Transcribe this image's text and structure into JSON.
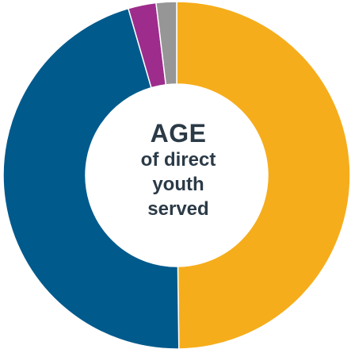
{
  "center_label": {
    "title": "AGE",
    "line1": "of direct",
    "line2": "youth",
    "line3": "served"
  },
  "chart_data": {
    "type": "pie",
    "variant": "donut",
    "title": "AGE of direct youth served",
    "series": [
      {
        "value": 49.8,
        "color": "#f6ad1b"
      },
      {
        "value": 45.7,
        "color": "#005a8c"
      },
      {
        "value": 2.6,
        "color": "#9d2c8c"
      },
      {
        "value": 1.9,
        "color": "#969696"
      }
    ],
    "legend": "none",
    "direction": "clockwise",
    "start": "top"
  }
}
